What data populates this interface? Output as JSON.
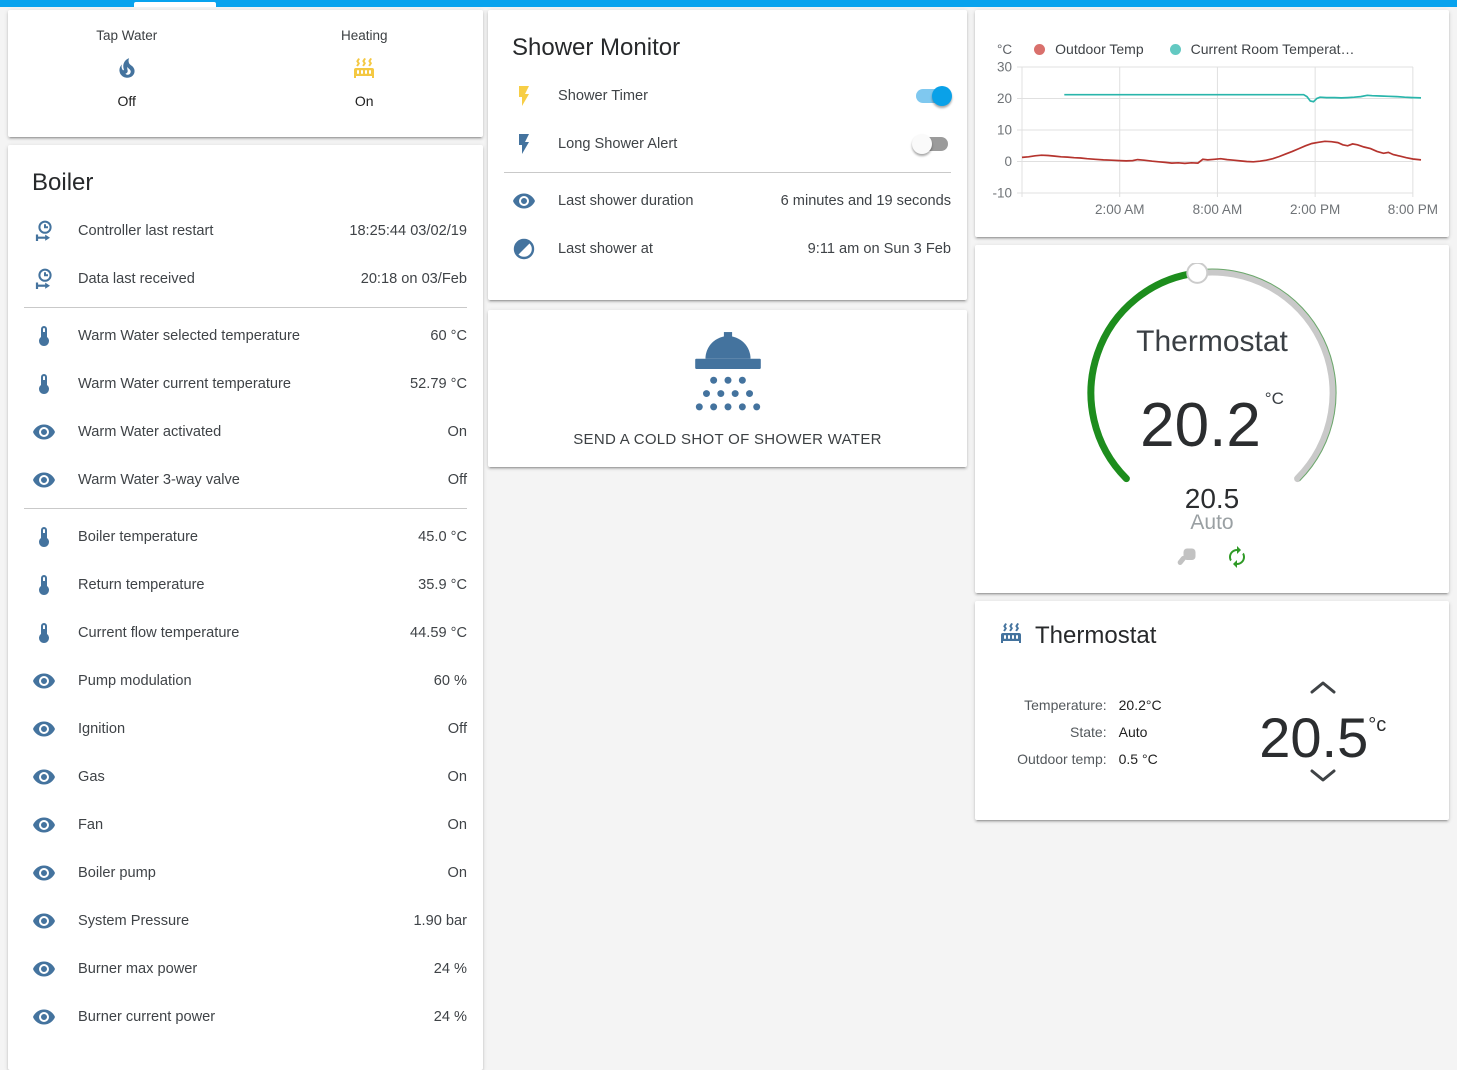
{
  "top_bar": {
    "color": "#09a3ee",
    "active_tab_indicator_color": "#ffffff"
  },
  "colors": {
    "icon_blue": "#44739e",
    "icon_yellow": "#f4c842",
    "toggle_on": "#0aa1e8",
    "dial_green": "#1d8d1d",
    "autorenew_green": "#2f9a26",
    "hand_gray": "#c2c2c2"
  },
  "glance": {
    "items": [
      {
        "name": "Tap Water",
        "icon": "fire-icon",
        "icon_color": "#44739e",
        "state": "Off"
      },
      {
        "name": "Heating",
        "icon": "radiator-icon",
        "icon_color": "#f4c842",
        "state": "On"
      }
    ]
  },
  "boiler": {
    "title": "Boiler",
    "sections": [
      [
        {
          "icon": "clock-start-icon",
          "name": "Controller last restart",
          "value": "18:25:44 03/02/19"
        },
        {
          "icon": "clock-start-icon",
          "name": "Data last received",
          "value": "20:18 on 03/Feb"
        }
      ],
      [
        {
          "icon": "thermometer-icon",
          "name": "Warm Water selected temperature",
          "value": "60 °C"
        },
        {
          "icon": "thermometer-icon",
          "name": "Warm Water current temperature",
          "value": "52.79 °C"
        },
        {
          "icon": "eye-icon",
          "name": "Warm Water activated",
          "value": "On"
        },
        {
          "icon": "eye-icon",
          "name": "Warm Water 3-way valve",
          "value": "Off"
        }
      ],
      [
        {
          "icon": "thermometer-icon",
          "name": "Boiler temperature",
          "value": "45.0 °C"
        },
        {
          "icon": "thermometer-icon",
          "name": "Return temperature",
          "value": "35.9 °C"
        },
        {
          "icon": "thermometer-icon",
          "name": "Current flow temperature",
          "value": "44.59 °C"
        },
        {
          "icon": "eye-icon",
          "name": "Pump modulation",
          "value": "60 %"
        },
        {
          "icon": "eye-icon",
          "name": "Ignition",
          "value": "Off"
        },
        {
          "icon": "eye-icon",
          "name": "Gas",
          "value": "On"
        },
        {
          "icon": "eye-icon",
          "name": "Fan",
          "value": "On"
        },
        {
          "icon": "eye-icon",
          "name": "Boiler pump",
          "value": "On"
        },
        {
          "icon": "eye-icon",
          "name": "System Pressure",
          "value": "1.90 bar"
        },
        {
          "icon": "eye-icon",
          "name": "Burner max power",
          "value": "24 %"
        },
        {
          "icon": "eye-icon",
          "name": "Burner current power",
          "value": "24 %"
        }
      ]
    ]
  },
  "shower_monitor": {
    "title": "Shower Monitor",
    "sections": [
      [
        {
          "icon": "flash-icon",
          "icon_color": "#f7ce46",
          "name": "Shower Timer",
          "toggle": true,
          "state": "on"
        },
        {
          "icon": "flash-icon",
          "icon_color": "#44739e",
          "name": "Long Shower Alert",
          "toggle": true,
          "state": "off"
        }
      ],
      [
        {
          "icon": "eye-icon",
          "name": "Last shower duration",
          "value": "6 minutes and 19 seconds"
        },
        {
          "icon": "clock-half-icon",
          "name": "Last shower at",
          "value": "9:11 am on Sun 3 Feb"
        }
      ]
    ]
  },
  "shower_button": {
    "label": "SEND A COLD SHOT OF SHOWER WATER"
  },
  "chart_data": {
    "type": "line",
    "unit": "°C",
    "ylim": [
      -10,
      30
    ],
    "y_ticks": [
      30,
      20,
      10,
      0,
      -10
    ],
    "x_range_hours": [
      0,
      24.5
    ],
    "x_ticks": [
      {
        "t": 6,
        "label": "2:00 AM"
      },
      {
        "t": 12,
        "label": "8:00 AM"
      },
      {
        "t": 18,
        "label": "2:00 PM"
      },
      {
        "t": 24,
        "label": "8:00 PM"
      }
    ],
    "grid": true,
    "legend_position": "top",
    "series": [
      {
        "name": "Outdoor Temp",
        "color": "#b5342e",
        "dot_color": "#d9706c",
        "points": [
          [
            0,
            1.3
          ],
          [
            0.4,
            1.5
          ],
          [
            0.8,
            1.8
          ],
          [
            1.2,
            2.0
          ],
          [
            1.6,
            1.9
          ],
          [
            2.0,
            1.7
          ],
          [
            2.4,
            1.5
          ],
          [
            2.8,
            1.4
          ],
          [
            3.2,
            1.2
          ],
          [
            3.6,
            1.1
          ],
          [
            4.0,
            0.9
          ],
          [
            4.5,
            0.7
          ],
          [
            5.0,
            0.5
          ],
          [
            5.5,
            0.4
          ],
          [
            6.0,
            0.3
          ],
          [
            6.4,
            0.2
          ],
          [
            6.8,
            0.3
          ],
          [
            7.1,
            0.6
          ],
          [
            7.5,
            0.4
          ],
          [
            8.0,
            0.1
          ],
          [
            8.4,
            -0.1
          ],
          [
            8.8,
            -0.3
          ],
          [
            9.2,
            -0.5
          ],
          [
            9.6,
            -0.4
          ],
          [
            10.0,
            -0.6
          ],
          [
            10.4,
            -0.4
          ],
          [
            10.8,
            -0.5
          ],
          [
            11.1,
            0.7
          ],
          [
            11.4,
            0.5
          ],
          [
            11.8,
            0.7
          ],
          [
            12.2,
            0.9
          ],
          [
            12.6,
            0.6
          ],
          [
            13.0,
            0.4
          ],
          [
            13.4,
            0.2
          ],
          [
            13.8,
            0.0
          ],
          [
            14.2,
            -0.1
          ],
          [
            14.6,
            0.1
          ],
          [
            15.0,
            0.4
          ],
          [
            15.4,
            0.9
          ],
          [
            15.8,
            1.6
          ],
          [
            16.2,
            2.4
          ],
          [
            16.6,
            3.2
          ],
          [
            17.0,
            4.1
          ],
          [
            17.4,
            5.0
          ],
          [
            17.8,
            5.7
          ],
          [
            18.2,
            6.1
          ],
          [
            18.6,
            6.4
          ],
          [
            19.0,
            6.3
          ],
          [
            19.4,
            6.0
          ],
          [
            19.7,
            5.3
          ],
          [
            20.0,
            5.0
          ],
          [
            20.3,
            5.6
          ],
          [
            20.6,
            5.3
          ],
          [
            21.0,
            4.6
          ],
          [
            21.4,
            4.1
          ],
          [
            21.8,
            3.2
          ],
          [
            22.2,
            2.6
          ],
          [
            22.5,
            2.9
          ],
          [
            22.8,
            2.2
          ],
          [
            23.2,
            1.7
          ],
          [
            23.6,
            1.2
          ],
          [
            24.0,
            0.8
          ],
          [
            24.5,
            0.5
          ]
        ]
      },
      {
        "name": "Current Room Temperat…",
        "color": "#29b5ab",
        "dot_color": "#63c9c2",
        "points": [
          [
            2.6,
            21.2
          ],
          [
            17.3,
            21.2
          ],
          [
            17.5,
            20.6
          ],
          [
            17.7,
            19.2
          ],
          [
            17.9,
            19.0
          ],
          [
            18.1,
            20.0
          ],
          [
            18.3,
            20.4
          ],
          [
            18.7,
            20.3
          ],
          [
            19.2,
            20.3
          ],
          [
            19.6,
            20.2
          ],
          [
            20.0,
            20.3
          ],
          [
            20.4,
            20.4
          ],
          [
            20.8,
            20.6
          ],
          [
            21.2,
            21.0
          ],
          [
            21.5,
            20.9
          ],
          [
            22.0,
            20.8
          ],
          [
            22.5,
            20.7
          ],
          [
            23.0,
            20.6
          ],
          [
            23.5,
            20.4
          ],
          [
            24.0,
            20.3
          ],
          [
            24.5,
            20.2
          ]
        ]
      }
    ]
  },
  "dial": {
    "title": "Thermostat",
    "current_temperature": "20.2",
    "unit": "°C",
    "target_temperature": "20.5",
    "mode": "Auto"
  },
  "thermostat_info": {
    "title": "Thermostat",
    "attributes": [
      {
        "label": "Temperature:",
        "value": "20.2°C"
      },
      {
        "label": "State:",
        "value": "Auto"
      },
      {
        "label": "Outdoor temp:",
        "value": "0.5 °C"
      }
    ],
    "target_temperature": "20.5",
    "target_unit": "°c"
  }
}
